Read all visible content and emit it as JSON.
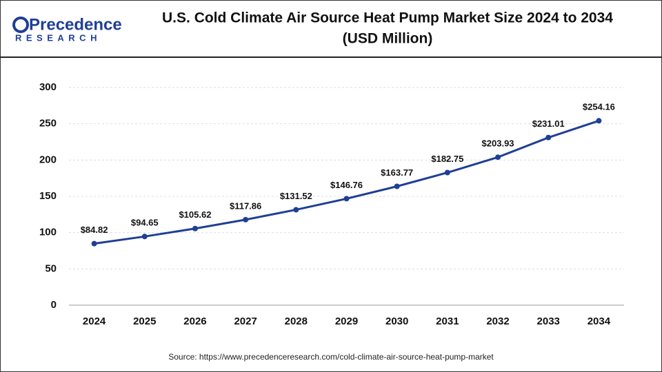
{
  "logo": {
    "name": "Precedence",
    "tagline": "RESEARCH"
  },
  "chart_data": {
    "type": "line",
    "title": [
      "U.S. Cold Climate Air Source Heat Pump Market Size 2024 to 2034",
      "(USD Million)"
    ],
    "categories": [
      "2024",
      "2025",
      "2026",
      "2027",
      "2028",
      "2029",
      "2030",
      "2031",
      "2032",
      "2033",
      "2034"
    ],
    "values": [
      84.82,
      94.65,
      105.62,
      117.86,
      131.52,
      146.76,
      163.77,
      182.75,
      203.93,
      231.01,
      254.16
    ],
    "value_labels": [
      "$84.82",
      "$94.65",
      "$105.62",
      "$117.86",
      "$131.52",
      "$146.76",
      "$163.77",
      "$182.75",
      "$203.93",
      "$231.01",
      "$254.16"
    ],
    "color": "#1f3f95",
    "ylim": [
      0,
      300
    ],
    "yticks": [
      0,
      50,
      100,
      150,
      200,
      250,
      300
    ],
    "grid": true,
    "source": "Source: https://www.precedenceresearch.com/cold-climate-air-source-heat-pump-market"
  }
}
